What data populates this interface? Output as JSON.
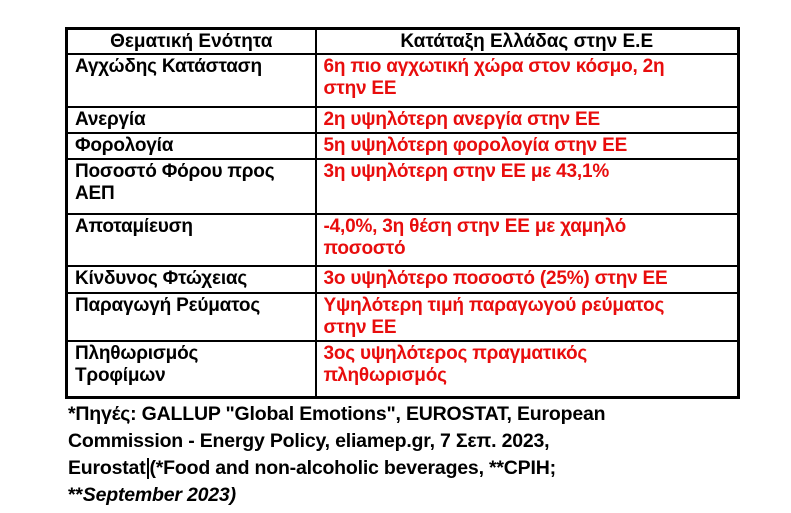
{
  "colors": {
    "table_border": "#000000",
    "topic_text": "#000000",
    "ranking_text": "#e80d0d",
    "background": "#ffffff"
  },
  "table": {
    "headers": [
      "Θεματική Ενότητα",
      "Κατάταξη Ελλάδας στην  Ε.Ε"
    ],
    "rows": [
      {
        "topic": "Αγχώδης Κατάσταση",
        "ranking": "6η πιο αγχωτική χώρα στον κόσμο, 2η\nστην ΕΕ"
      },
      {
        "topic": "Ανεργία",
        "ranking": "2η υψηλότερη ανεργία στην ΕΕ"
      },
      {
        "topic": "Φορολογία",
        "ranking": "5η υψηλότερη φορολογία στην ΕΕ"
      },
      {
        "topic": "Ποσοστό Φόρου προς\nΑΕΠ",
        "ranking": "3η υψηλότερη στην ΕΕ με 43,1%"
      },
      {
        "topic": "Αποταμίευση",
        "ranking": "-4,0%, 3η θέση στην ΕΕ με χαμηλό\nποσοστό"
      },
      {
        "topic": "Κίνδυνος Φτώχειας",
        "ranking": "3ο υψηλότερο ποσοστό (25%) στην ΕΕ"
      },
      {
        "topic": "Παραγωγή Ρεύματος",
        "ranking": "Υψηλότερη τιμή παραγωγού ρεύματος\nστην ΕΕ"
      },
      {
        "topic": "Πληθωρισμός\nΤροφίμων",
        "ranking": "3ος υψηλότερος πραγματικός\nπληθωρισμός"
      }
    ]
  },
  "footnote": {
    "line1": "*Πηγές: GALLUP \"Global Emotions\", EUROSTAT, European",
    "line2": "Commission - Energy Policy, eliamep.gr, 7 Σεπ. 2023,",
    "line3_before_caret": "Eurostat",
    "line3_after_caret": "(*Food and non-alcoholic beverages, **CPIH;",
    "line4_prefix": "**",
    "line4_italic": "September 2023)"
  }
}
